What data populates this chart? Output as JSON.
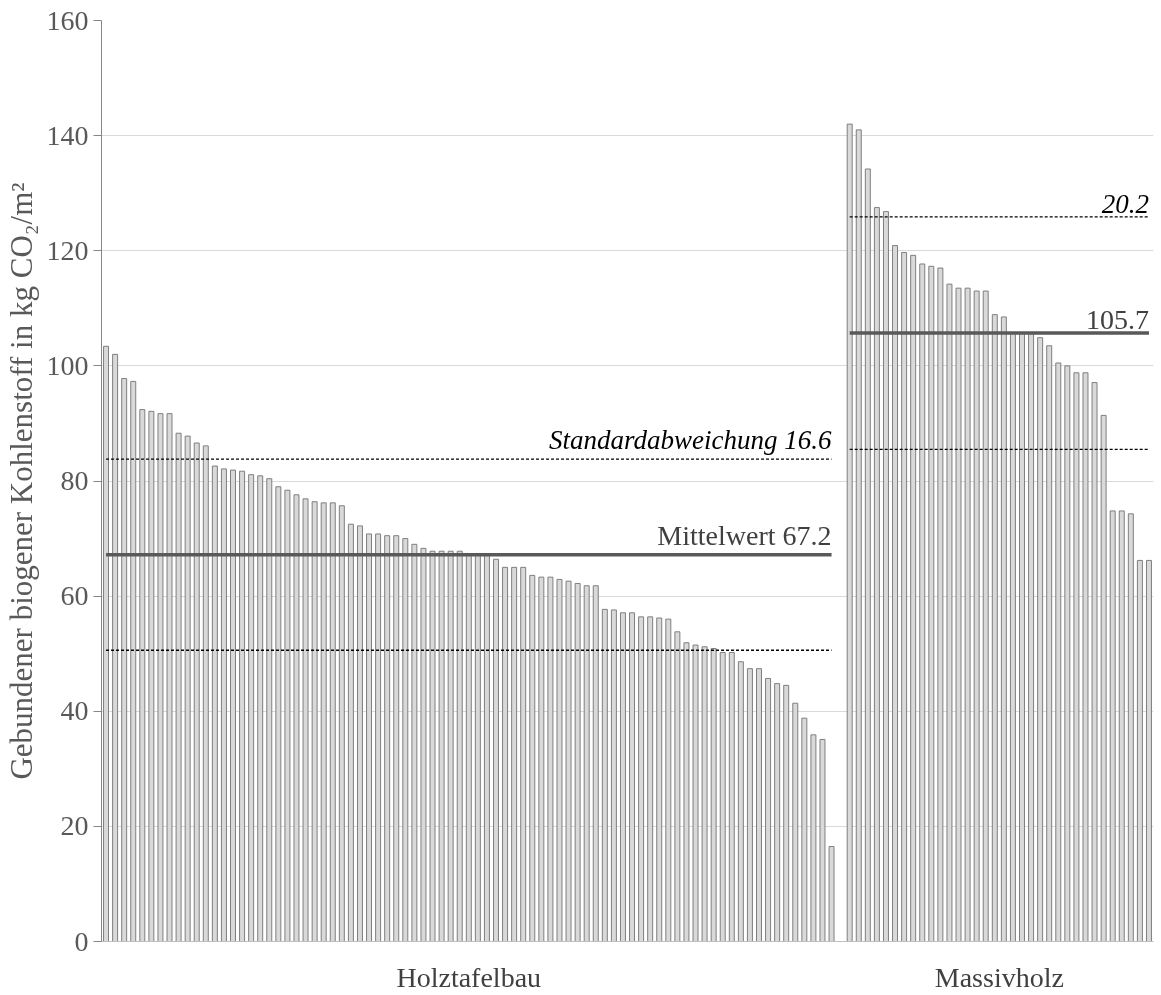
{
  "chart_data": {
    "type": "bar",
    "ylabel": "Gebundener biogener Kohlenstoff in kg CO₂/m²",
    "categories": [
      null,
      null,
      null,
      null,
      null,
      null,
      null,
      null,
      null,
      null,
      null,
      null,
      null,
      null,
      null,
      null,
      null,
      null,
      null,
      null,
      null,
      null,
      null,
      null,
      null,
      null,
      null,
      null,
      null,
      null,
      null,
      null,
      null,
      null,
      null,
      null,
      null,
      null,
      null,
      null,
      null,
      null,
      null,
      null,
      null,
      null,
      null,
      null,
      null,
      null,
      null,
      null,
      null,
      null,
      null,
      null,
      null,
      null,
      null,
      null,
      null,
      null,
      null,
      null,
      null,
      null,
      null,
      null,
      null,
      null,
      null,
      null,
      null,
      null,
      null,
      null,
      null,
      null,
      null,
      null,
      null,
      null,
      null,
      null,
      null,
      null,
      null,
      null,
      null,
      null,
      null,
      null,
      null,
      null,
      null,
      null,
      null,
      null,
      null,
      null,
      null,
      null,
      null,
      null,
      null,
      null,
      null,
      null,
      null,
      null,
      null,
      null,
      null,
      null,
      null,
      null
    ],
    "stacked": true,
    "ylim": [
      0,
      160
    ],
    "yticks": [
      0,
      20,
      40,
      60,
      80,
      100,
      120,
      140,
      160
    ],
    "grid": "y",
    "series": [
      {
        "name": "Holztafelbau",
        "color": "#d9d9d9",
        "values": [
          103.4,
          102.0,
          97.8,
          97.3,
          92.4,
          92.1,
          91.7,
          91.7,
          88.3,
          87.8,
          86.6,
          86.1,
          82.6,
          82.1,
          81.9,
          81.7,
          81.1,
          80.9,
          80.4,
          79.0,
          78.4,
          77.6,
          76.9,
          76.4,
          76.2,
          76.2,
          75.7,
          72.5,
          72.2,
          70.8,
          70.8,
          70.5,
          70.5,
          70.0,
          69.0,
          68.3,
          67.8,
          67.8,
          67.8,
          67.8,
          67.4,
          67.3,
          67.2,
          66.4,
          65.0,
          65.0,
          65.0,
          63.6,
          63.3,
          63.3,
          62.9,
          62.6,
          62.2,
          61.8,
          61.8,
          57.7,
          57.6,
          57.1,
          57.1,
          56.4,
          56.4,
          56.2,
          56.0,
          53.8,
          51.9,
          51.5,
          51.2,
          50.9,
          50.2,
          50.2,
          48.6,
          47.4,
          47.4,
          45.7,
          44.8,
          44.5,
          41.4,
          38.8,
          35.9,
          35.1,
          16.5,
          null,
          null,
          null,
          null,
          null,
          null,
          null,
          null,
          null,
          null,
          null,
          null,
          null,
          null,
          null,
          null,
          null,
          null,
          null,
          null,
          null,
          null,
          null,
          null,
          null,
          null,
          null,
          null,
          null,
          null,
          null,
          null,
          null,
          null,
          null
        ]
      },
      {
        "name": "Massivholz",
        "color": "#d9d9d9",
        "values": [
          null,
          null,
          null,
          null,
          null,
          null,
          null,
          null,
          null,
          null,
          null,
          null,
          null,
          null,
          null,
          null,
          null,
          null,
          null,
          null,
          null,
          null,
          null,
          null,
          null,
          null,
          null,
          null,
          null,
          null,
          null,
          null,
          null,
          null,
          null,
          null,
          null,
          null,
          null,
          null,
          null,
          null,
          null,
          null,
          null,
          null,
          null,
          null,
          null,
          null,
          null,
          null,
          null,
          null,
          null,
          null,
          null,
          null,
          null,
          null,
          null,
          null,
          null,
          null,
          null,
          null,
          null,
          null,
          null,
          null,
          null,
          null,
          null,
          null,
          null,
          null,
          null,
          null,
          null,
          null,
          null,
          null,
          142.0,
          141.0,
          134.2,
          127.5,
          126.8,
          120.9,
          119.7,
          119.2,
          117.7,
          117.3,
          117.0,
          114.2,
          113.5,
          113.5,
          113.0,
          113.0,
          108.9,
          108.5,
          105.7,
          105.7,
          105.6,
          104.9,
          103.5,
          100.5,
          100.0,
          98.8,
          98.8,
          97.1,
          91.4,
          74.8,
          74.8,
          74.3,
          66.2,
          66.2
        ]
      },
      {
        "name": "Mittelwert 67.2",
        "type": "line",
        "color": "#595959",
        "line_style": "solid",
        "values": [
          67.2,
          67.2,
          67.2,
          67.2,
          67.2,
          67.2,
          67.2,
          67.2,
          67.2,
          67.2,
          67.2,
          67.2,
          67.2,
          67.2,
          67.2,
          67.2,
          67.2,
          67.2,
          67.2,
          67.2,
          67.2,
          67.2,
          67.2,
          67.2,
          67.2,
          67.2,
          67.2,
          67.2,
          67.2,
          67.2,
          67.2,
          67.2,
          67.2,
          67.2,
          67.2,
          67.2,
          67.2,
          67.2,
          67.2,
          67.2,
          67.2,
          67.2,
          67.2,
          67.2,
          67.2,
          67.2,
          67.2,
          67.2,
          67.2,
          67.2,
          67.2,
          67.2,
          67.2,
          67.2,
          67.2,
          67.2,
          67.2,
          67.2,
          67.2,
          67.2,
          67.2,
          67.2,
          67.2,
          67.2,
          67.2,
          67.2,
          67.2,
          67.2,
          67.2,
          67.2,
          67.2,
          67.2,
          67.2,
          67.2,
          67.2,
          67.2,
          67.2,
          67.2,
          67.2,
          67.2,
          67.2,
          null,
          null,
          null,
          null,
          null,
          null,
          null,
          null,
          null,
          null,
          null,
          null,
          null,
          null,
          null,
          null,
          null,
          null,
          null,
          null,
          null,
          null,
          null,
          null,
          null,
          null,
          null,
          null,
          null,
          null,
          null,
          null,
          null,
          null,
          null
        ]
      },
      {
        "name": "Standardabweichung 16.6",
        "type": "line",
        "color": "#000000",
        "line_style": "dashed",
        "values": [
          83.8,
          83.8,
          83.8,
          83.8,
          83.8,
          83.8,
          83.8,
          83.8,
          83.8,
          83.8,
          83.8,
          83.8,
          83.8,
          83.8,
          83.8,
          83.8,
          83.8,
          83.8,
          83.8,
          83.8,
          83.8,
          83.8,
          83.8,
          83.8,
          83.8,
          83.8,
          83.8,
          83.8,
          83.8,
          83.8,
          83.8,
          83.8,
          83.8,
          83.8,
          83.8,
          83.8,
          83.8,
          83.8,
          83.8,
          83.8,
          83.8,
          83.8,
          83.8,
          83.8,
          83.8,
          83.8,
          83.8,
          83.8,
          83.8,
          83.8,
          83.8,
          83.8,
          83.8,
          83.8,
          83.8,
          83.8,
          83.8,
          83.8,
          83.8,
          83.8,
          83.8,
          83.8,
          83.8,
          83.8,
          83.8,
          83.8,
          83.8,
          83.8,
          83.8,
          83.8,
          83.8,
          83.8,
          83.8,
          83.8,
          83.8,
          83.8,
          83.8,
          83.8,
          83.8,
          83.8,
          83.8,
          null,
          null,
          null,
          null,
          null,
          null,
          null,
          null,
          null,
          null,
          null,
          null,
          null,
          null,
          null,
          null,
          null,
          null,
          null,
          null,
          null,
          null,
          null,
          null,
          null,
          null,
          null,
          null,
          null,
          null,
          null,
          null,
          null,
          null,
          null
        ]
      },
      {
        "type": "line",
        "color": "#000000",
        "line_style": "dashed",
        "values": [
          50.6,
          50.6,
          50.6,
          50.6,
          50.6,
          50.6,
          50.6,
          50.6,
          50.6,
          50.6,
          50.6,
          50.6,
          50.6,
          50.6,
          50.6,
          50.6,
          50.6,
          50.6,
          50.6,
          50.6,
          50.6,
          50.6,
          50.6,
          50.6,
          50.6,
          50.6,
          50.6,
          50.6,
          50.6,
          50.6,
          50.6,
          50.6,
          50.6,
          50.6,
          50.6,
          50.6,
          50.6,
          50.6,
          50.6,
          50.6,
          50.6,
          50.6,
          50.6,
          50.6,
          50.6,
          50.6,
          50.6,
          50.6,
          50.6,
          50.6,
          50.6,
          50.6,
          50.6,
          50.6,
          50.6,
          50.6,
          50.6,
          50.6,
          50.6,
          50.6,
          50.6,
          50.6,
          50.6,
          50.6,
          50.6,
          50.6,
          50.6,
          50.6,
          50.6,
          50.6,
          50.6,
          50.6,
          50.6,
          50.6,
          50.6,
          50.6,
          50.6,
          50.6,
          50.6,
          50.6,
          50.6,
          null,
          null,
          null,
          null,
          null,
          null,
          null,
          null,
          null,
          null,
          null,
          null,
          null,
          null,
          null,
          null,
          null,
          null,
          null,
          null,
          null,
          null,
          null,
          null,
          null,
          null,
          null,
          null,
          null,
          null,
          null,
          null,
          null,
          null,
          null
        ]
      },
      {
        "name": "105.7",
        "type": "line",
        "color": "#595959",
        "line_style": "solid",
        "values": [
          null,
          null,
          null,
          null,
          null,
          null,
          null,
          null,
          null,
          null,
          null,
          null,
          null,
          null,
          null,
          null,
          null,
          null,
          null,
          null,
          null,
          null,
          null,
          null,
          null,
          null,
          null,
          null,
          null,
          null,
          null,
          null,
          null,
          null,
          null,
          null,
          null,
          null,
          null,
          null,
          null,
          null,
          null,
          null,
          null,
          null,
          null,
          null,
          null,
          null,
          null,
          null,
          null,
          null,
          null,
          null,
          null,
          null,
          null,
          null,
          null,
          null,
          null,
          null,
          null,
          null,
          null,
          null,
          null,
          null,
          null,
          null,
          null,
          null,
          null,
          null,
          null,
          null,
          null,
          null,
          null,
          null,
          105.7,
          105.7,
          105.7,
          105.7,
          105.7,
          105.7,
          105.7,
          105.7,
          105.7,
          105.7,
          105.7,
          105.7,
          105.7,
          105.7,
          105.7,
          105.7,
          105.7,
          105.7,
          105.7,
          105.7,
          105.7,
          105.7,
          105.7,
          105.7,
          105.7,
          105.7,
          105.7,
          105.7,
          105.7,
          105.7,
          105.7,
          105.7,
          105.7,
          105.7
        ]
      },
      {
        "name": "20.2",
        "type": "line",
        "color": "#000000",
        "line_style": "dashed",
        "values": [
          null,
          null,
          null,
          null,
          null,
          null,
          null,
          null,
          null,
          null,
          null,
          null,
          null,
          null,
          null,
          null,
          null,
          null,
          null,
          null,
          null,
          null,
          null,
          null,
          null,
          null,
          null,
          null,
          null,
          null,
          null,
          null,
          null,
          null,
          null,
          null,
          null,
          null,
          null,
          null,
          null,
          null,
          null,
          null,
          null,
          null,
          null,
          null,
          null,
          null,
          null,
          null,
          null,
          null,
          null,
          null,
          null,
          null,
          null,
          null,
          null,
          null,
          null,
          null,
          null,
          null,
          null,
          null,
          null,
          null,
          null,
          null,
          null,
          null,
          null,
          null,
          null,
          null,
          null,
          null,
          null,
          null,
          125.9,
          125.9,
          125.9,
          125.9,
          125.9,
          125.9,
          125.9,
          125.9,
          125.9,
          125.9,
          125.9,
          125.9,
          125.9,
          125.9,
          125.9,
          125.9,
          125.9,
          125.9,
          125.9,
          125.9,
          125.9,
          125.9,
          125.9,
          125.9,
          125.9,
          125.9,
          125.9,
          125.9,
          125.9,
          125.9,
          125.9,
          125.9,
          125.9,
          125.9
        ]
      },
      {
        "type": "line",
        "color": "#000000",
        "line_style": "dashed",
        "values": [
          null,
          null,
          null,
          null,
          null,
          null,
          null,
          null,
          null,
          null,
          null,
          null,
          null,
          null,
          null,
          null,
          null,
          null,
          null,
          null,
          null,
          null,
          null,
          null,
          null,
          null,
          null,
          null,
          null,
          null,
          null,
          null,
          null,
          null,
          null,
          null,
          null,
          null,
          null,
          null,
          null,
          null,
          null,
          null,
          null,
          null,
          null,
          null,
          null,
          null,
          null,
          null,
          null,
          null,
          null,
          null,
          null,
          null,
          null,
          null,
          null,
          null,
          null,
          null,
          null,
          null,
          null,
          null,
          null,
          null,
          null,
          null,
          null,
          null,
          null,
          null,
          null,
          null,
          null,
          null,
          null,
          null,
          85.5,
          85.5,
          85.5,
          85.5,
          85.5,
          85.5,
          85.5,
          85.5,
          85.5,
          85.5,
          85.5,
          85.5,
          85.5,
          85.5,
          85.5,
          85.5,
          85.5,
          85.5,
          85.5,
          85.5,
          85.5,
          85.5,
          85.5,
          85.5,
          85.5,
          85.5,
          85.5,
          85.5,
          85.5,
          85.5,
          85.5,
          85.5,
          85.5,
          85.5
        ]
      }
    ]
  }
}
